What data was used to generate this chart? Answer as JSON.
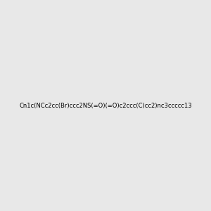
{
  "smiles": "Cn1c(NCc2cc(Br)ccc2NS(=O)(=O)c2ccc(C)cc2)nc3ccccc13",
  "image_size": 300,
  "background_color": "#e8e8e8"
}
